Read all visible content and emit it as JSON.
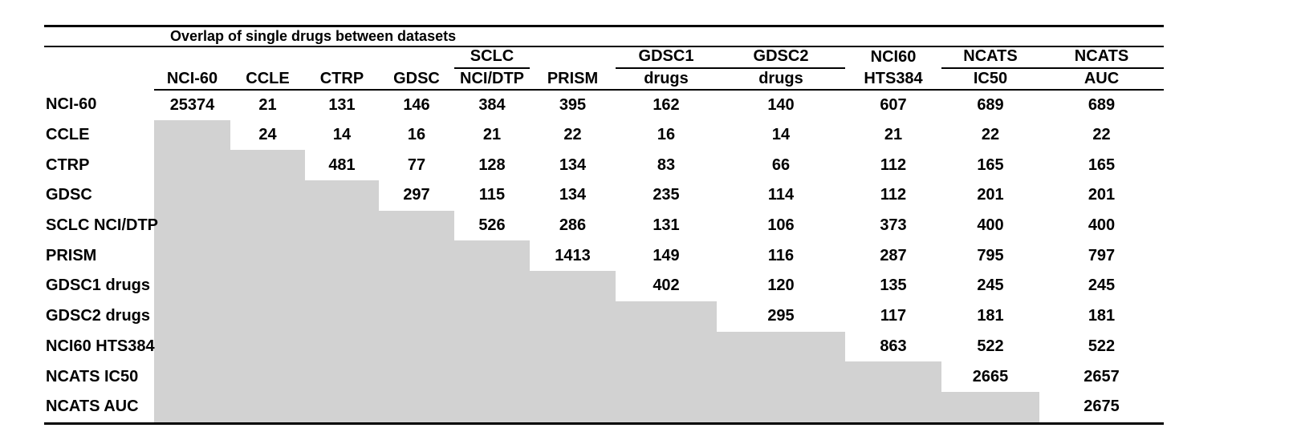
{
  "table": {
    "title": "Overlap of single drugs between datasets",
    "shaded_cell_color": "#d2d2d2",
    "columns": [
      {
        "top": "",
        "bottom": "NCI-60",
        "group_underline": false
      },
      {
        "top": "",
        "bottom": "CCLE",
        "group_underline": false
      },
      {
        "top": "",
        "bottom": "CTRP",
        "group_underline": false
      },
      {
        "top": "",
        "bottom": "GDSC",
        "group_underline": false
      },
      {
        "top": "SCLC",
        "bottom": "NCI/DTP",
        "group_underline": true
      },
      {
        "top": "",
        "bottom": "PRISM",
        "group_underline": false
      },
      {
        "top": "GDSC1",
        "bottom": "drugs",
        "group_underline": true
      },
      {
        "top": "GDSC2",
        "bottom": "drugs",
        "group_underline": true
      },
      {
        "top": "NCI60",
        "bottom": "HTS384",
        "group_underline": false
      },
      {
        "top": "NCATS",
        "bottom": "IC50",
        "group_underline": true
      },
      {
        "top": "NCATS",
        "bottom": "AUC",
        "group_underline": true
      }
    ],
    "rows": [
      {
        "label": "NCI-60",
        "values": [
          25374,
          21,
          131,
          146,
          384,
          395,
          162,
          140,
          607,
          689,
          689
        ]
      },
      {
        "label": "CCLE",
        "values": [
          null,
          24,
          14,
          16,
          21,
          22,
          16,
          14,
          21,
          22,
          22
        ]
      },
      {
        "label": "CTRP",
        "values": [
          null,
          null,
          481,
          77,
          128,
          134,
          83,
          66,
          112,
          165,
          165
        ]
      },
      {
        "label": "GDSC",
        "values": [
          null,
          null,
          null,
          297,
          115,
          134,
          235,
          114,
          112,
          201,
          201
        ]
      },
      {
        "label": "SCLC NCI/DTP",
        "values": [
          null,
          null,
          null,
          null,
          526,
          286,
          131,
          106,
          373,
          400,
          400
        ]
      },
      {
        "label": "PRISM",
        "values": [
          null,
          null,
          null,
          null,
          null,
          1413,
          149,
          116,
          287,
          795,
          797
        ]
      },
      {
        "label": "GDSC1 drugs",
        "values": [
          null,
          null,
          null,
          null,
          null,
          null,
          402,
          120,
          135,
          245,
          245
        ]
      },
      {
        "label": "GDSC2 drugs",
        "values": [
          null,
          null,
          null,
          null,
          null,
          null,
          null,
          295,
          117,
          181,
          181
        ]
      },
      {
        "label": "NCI60 HTS384",
        "values": [
          null,
          null,
          null,
          null,
          null,
          null,
          null,
          null,
          863,
          522,
          522
        ]
      },
      {
        "label": "NCATS IC50",
        "values": [
          null,
          null,
          null,
          null,
          null,
          null,
          null,
          null,
          null,
          2665,
          2657
        ]
      },
      {
        "label": "NCATS AUC",
        "values": [
          null,
          null,
          null,
          null,
          null,
          null,
          null,
          null,
          null,
          null,
          2675
        ]
      }
    ]
  }
}
